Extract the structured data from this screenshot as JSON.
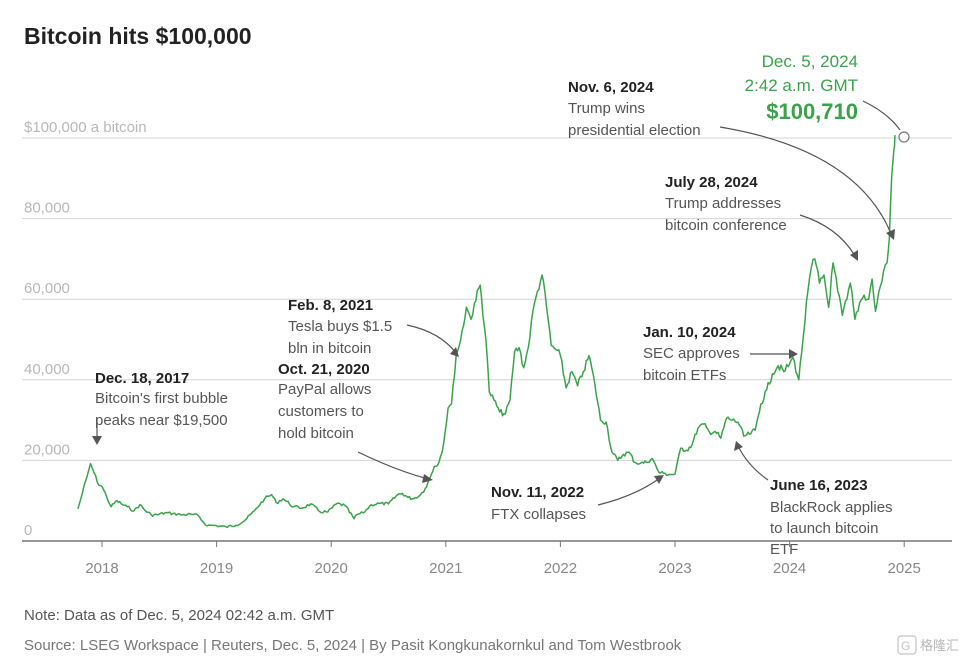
{
  "chart_data": {
    "type": "line",
    "title": "Bitcoin hits $100,000",
    "y_ticks": [
      "$100,000 a bitcoin",
      "80,000",
      "60,000",
      "40,000",
      "20,000",
      "0"
    ],
    "y_tick_values": [
      100000,
      80000,
      60000,
      40000,
      20000,
      0
    ],
    "x_ticks": [
      "2018",
      "2019",
      "2020",
      "2021",
      "2022",
      "2023",
      "2024",
      "2025"
    ],
    "x_tick_values": [
      2018,
      2019,
      2020,
      2021,
      2022,
      2023,
      2024,
      2025
    ],
    "xlim": [
      2017.85,
      2025.15
    ],
    "ylim": [
      0,
      104000
    ],
    "grid": true,
    "series": [
      {
        "color": "#3aa34a",
        "x": [
          2017.79,
          2017.83,
          2017.87,
          2017.9,
          2017.93,
          2017.96,
          2018.0,
          2018.04,
          2018.08,
          2018.13,
          2018.18,
          2018.22,
          2018.28,
          2018.33,
          2018.38,
          2018.43,
          2018.48,
          2018.55,
          2018.62,
          2018.7,
          2018.78,
          2018.84,
          2018.88,
          2018.92,
          2018.96,
          2019.0,
          2019.08,
          2019.17,
          2019.25,
          2019.33,
          2019.42,
          2019.48,
          2019.52,
          2019.58,
          2019.67,
          2019.75,
          2019.82,
          2019.9,
          2019.97,
          2020.05,
          2020.12,
          2020.2,
          2020.22,
          2020.28,
          2020.35,
          2020.42,
          2020.5,
          2020.58,
          2020.62,
          2020.67,
          2020.72,
          2020.78,
          2020.82,
          2020.86,
          2020.9,
          2020.94,
          2020.98,
          2021.02,
          2021.05,
          2021.09,
          2021.13,
          2021.18,
          2021.22,
          2021.25,
          2021.3,
          2021.35,
          2021.38,
          2021.42,
          2021.47,
          2021.52,
          2021.56,
          2021.6,
          2021.64,
          2021.68,
          2021.72,
          2021.76,
          2021.8,
          2021.84,
          2021.88,
          2021.92,
          2021.96,
          2022.0,
          2022.05,
          2022.1,
          2022.15,
          2022.2,
          2022.25,
          2022.3,
          2022.35,
          2022.4,
          2022.45,
          2022.5,
          2022.55,
          2022.6,
          2022.65,
          2022.7,
          2022.75,
          2022.8,
          2022.86,
          2022.9,
          2022.95,
          2023.0,
          2023.05,
          2023.1,
          2023.15,
          2023.2,
          2023.25,
          2023.3,
          2023.35,
          2023.4,
          2023.45,
          2023.5,
          2023.55,
          2023.6,
          2023.65,
          2023.7,
          2023.75,
          2023.8,
          2023.85,
          2023.9,
          2023.95,
          2024.0,
          2024.03,
          2024.08,
          2024.12,
          2024.16,
          2024.19,
          2024.22,
          2024.26,
          2024.3,
          2024.34,
          2024.38,
          2024.42,
          2024.46,
          2024.5,
          2024.53,
          2024.57,
          2024.61,
          2024.65,
          2024.69,
          2024.72,
          2024.75,
          2024.79,
          2024.82,
          2024.85,
          2024.87,
          2024.89,
          2024.91,
          2024.92
        ],
        "values": [
          8000,
          12000,
          16000,
          19200,
          17000,
          14500,
          13500,
          11000,
          8500,
          10000,
          9000,
          8500,
          7500,
          9000,
          7500,
          6500,
          6500,
          7000,
          6800,
          6500,
          6600,
          6300,
          4800,
          3800,
          3900,
          3800,
          3500,
          3900,
          5200,
          7500,
          10500,
          11500,
          9500,
          10500,
          8500,
          8200,
          9200,
          7300,
          7200,
          9300,
          8800,
          5500,
          6500,
          7000,
          9000,
          9300,
          9200,
          11500,
          11800,
          10800,
          10500,
          11500,
          13000,
          15500,
          18500,
          19500,
          24000,
          33000,
          34000,
          46000,
          50000,
          58000,
          55000,
          59000,
          63500,
          50000,
          37000,
          35000,
          32000,
          31500,
          35000,
          47000,
          48000,
          43000,
          48000,
          57000,
          62000,
          66000,
          58000,
          48500,
          47500,
          46000,
          38000,
          42000,
          38500,
          42000,
          46000,
          39000,
          30000,
          29500,
          22000,
          20000,
          21500,
          22000,
          19500,
          19300,
          19500,
          20500,
          17000,
          16800,
          16500,
          16600,
          23000,
          22500,
          24000,
          28000,
          29000,
          27000,
          27200,
          25500,
          30500,
          30000,
          29500,
          26000,
          26500,
          27500,
          34000,
          37500,
          41500,
          43500,
          42000,
          44000,
          45500,
          40000,
          51000,
          62000,
          68000,
          70000,
          64000,
          66000,
          58000,
          69000,
          62000,
          56000,
          60000,
          64000,
          55000,
          59000,
          61000,
          60000,
          65000,
          57000,
          63000,
          67000,
          69000,
          75000,
          90000,
          97000,
          100710
        ]
      }
    ],
    "annotations": [
      {
        "date": "Dec. 18, 2017",
        "text": [
          "Bitcoin's first bubble",
          "peaks near $19,500"
        ]
      },
      {
        "date": "Oct. 21, 2020",
        "text": [
          "PayPal allows",
          "customers to",
          "hold bitcoin"
        ]
      },
      {
        "date": "Feb. 8, 2021",
        "text": [
          "Tesla buys $1.5",
          "bln in bitcoin"
        ]
      },
      {
        "date": "Nov. 11, 2022",
        "text": [
          "FTX collapses"
        ]
      },
      {
        "date": "June 16, 2023",
        "text": [
          "BlackRock applies",
          "to launch bitcoin",
          "ETF"
        ]
      },
      {
        "date": "Jan. 10, 2024",
        "text": [
          "SEC approves",
          "bitcoin ETFs"
        ]
      },
      {
        "date": "July 28, 2024",
        "text": [
          "Trump addresses",
          "bitcoin conference"
        ]
      },
      {
        "date": "Nov. 6, 2024",
        "text": [
          "Trump wins",
          "presidential election"
        ]
      }
    ],
    "highlight": {
      "line1": "Dec. 5, 2024",
      "line2": "2:42 a.m. GMT",
      "value": "$100,710",
      "x": 2024.92,
      "y": 100710
    }
  },
  "note": "Note: Data as of Dec. 5, 2024 02:42 a.m. GMT",
  "source": "Source: LSEG Workspace | Reuters, Dec. 5, 2024 | By Pasit Kongkunakornkul and Tom Westbrook",
  "watermark": "格隆汇"
}
